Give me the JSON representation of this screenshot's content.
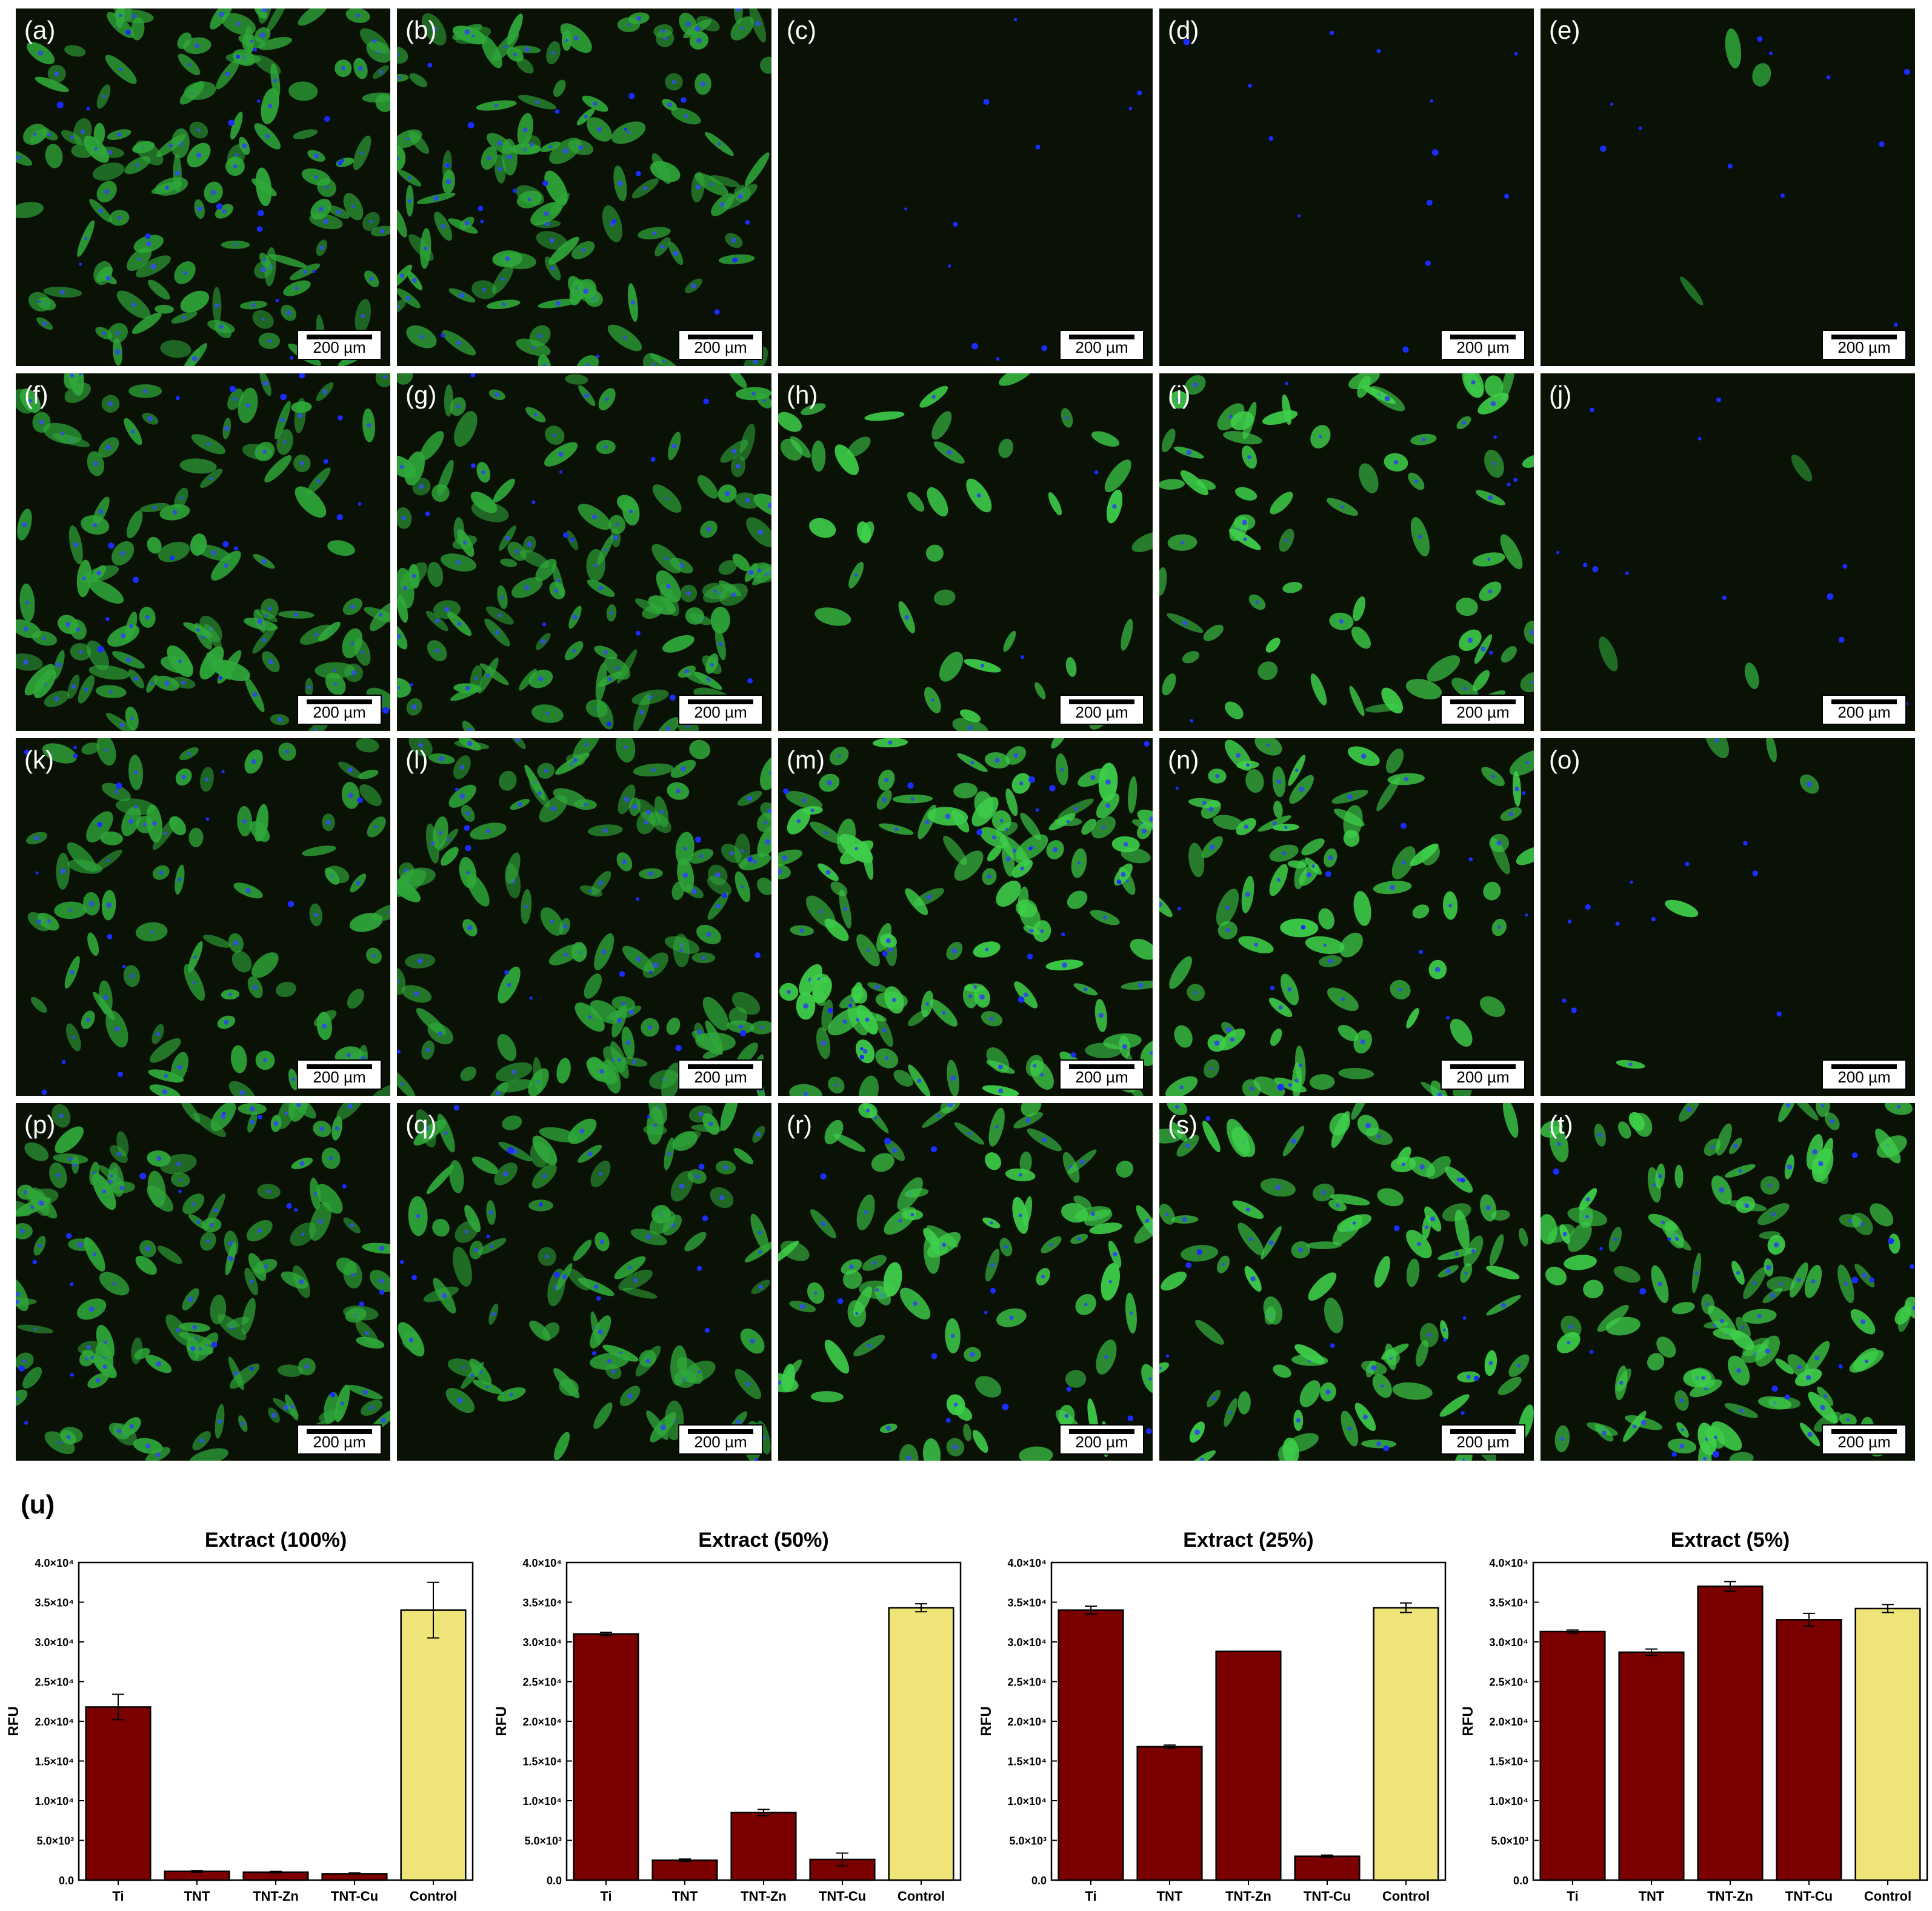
{
  "panels": [
    {
      "label": "(a)",
      "scale": "200 µm",
      "fill": 0.85,
      "color": "#2fa83a",
      "nuclei": 0.6
    },
    {
      "label": "(b)",
      "scale": "200 µm",
      "fill": 0.75,
      "color": "#2fa83a",
      "nuclei": 0.6
    },
    {
      "label": "(c)",
      "scale": "200 µm",
      "fill": 0.0,
      "color": "#2fa83a",
      "nuclei": 0.02
    },
    {
      "label": "(d)",
      "scale": "200 µm",
      "fill": 0.0,
      "color": "#2fa83a",
      "nuclei": 0.1
    },
    {
      "label": "(e)",
      "scale": "200 µm",
      "fill": 0.02,
      "color": "#2fa83a",
      "nuclei": 0.08
    },
    {
      "label": "(f)",
      "scale": "200 µm",
      "fill": 0.7,
      "color": "#2fa83a",
      "nuclei": 0.6
    },
    {
      "label": "(g)",
      "scale": "200 µm",
      "fill": 0.8,
      "color": "#2fa83a",
      "nuclei": 0.5
    },
    {
      "label": "(h)",
      "scale": "200 µm",
      "fill": 0.25,
      "color": "#3ecf4a",
      "nuclei": 0.1
    },
    {
      "label": "(i)",
      "scale": "200 µm",
      "fill": 0.45,
      "color": "#3ecf4a",
      "nuclei": 0.2
    },
    {
      "label": "(j)",
      "scale": "200 µm",
      "fill": 0.02,
      "color": "#2fa83a",
      "nuclei": 0.08
    },
    {
      "label": "(k)",
      "scale": "200 µm",
      "fill": 0.55,
      "color": "#2fa83a",
      "nuclei": 0.5
    },
    {
      "label": "(l)",
      "scale": "200 µm",
      "fill": 0.8,
      "color": "#2fa83a",
      "nuclei": 0.5
    },
    {
      "label": "(m)",
      "scale": "200 µm",
      "fill": 0.85,
      "color": "#3ecf4a",
      "nuclei": 0.6
    },
    {
      "label": "(n)",
      "scale": "200 µm",
      "fill": 0.55,
      "color": "#3ecf4a",
      "nuclei": 0.4
    },
    {
      "label": "(o)",
      "scale": "200 µm",
      "fill": 0.03,
      "color": "#3ecf4a",
      "nuclei": 0.06
    },
    {
      "label": "(p)",
      "scale": "200 µm",
      "fill": 0.8,
      "color": "#2fa83a",
      "nuclei": 0.6
    },
    {
      "label": "(q)",
      "scale": "200 µm",
      "fill": 0.6,
      "color": "#2fa83a",
      "nuclei": 0.5
    },
    {
      "label": "(r)",
      "scale": "200 µm",
      "fill": 0.55,
      "color": "#3ecf4a",
      "nuclei": 0.4
    },
    {
      "label": "(s)",
      "scale": "200 µm",
      "fill": 0.6,
      "color": "#3ecf4a",
      "nuclei": 0.4
    },
    {
      "label": "(t)",
      "scale": "200 µm",
      "fill": 0.75,
      "color": "#3ecf4a",
      "nuclei": 0.5
    }
  ],
  "section_label": "(u)",
  "chart_data": [
    {
      "type": "bar",
      "title": "Extract (100%)",
      "ylabel": "RFU",
      "categories": [
        "Ti",
        "TNT",
        "TNT-Zn",
        "TNT-Cu",
        "Control"
      ],
      "values": [
        21800,
        1100,
        1000,
        800,
        34000
      ],
      "errors": [
        1600,
        100,
        100,
        100,
        3500
      ],
      "colors": [
        "#7b0000",
        "#7b0000",
        "#7b0000",
        "#7b0000",
        "#eee477"
      ],
      "ylim": [
        0,
        40000
      ],
      "yticks": [
        {
          "v": 0,
          "t": "0.0"
        },
        {
          "v": 5000,
          "t": "5.0×10³"
        },
        {
          "v": 10000,
          "t": "1.0×10⁴"
        },
        {
          "v": 15000,
          "t": "1.5×10⁴"
        },
        {
          "v": 20000,
          "t": "2.0×10⁴"
        },
        {
          "v": 25000,
          "t": "2.5×10⁴"
        },
        {
          "v": 30000,
          "t": "3.0×10⁴"
        },
        {
          "v": 35000,
          "t": "3.5×10⁴"
        },
        {
          "v": 40000,
          "t": "4.0×10⁴"
        }
      ]
    },
    {
      "type": "bar",
      "title": "Extract (50%)",
      "ylabel": "RFU",
      "categories": [
        "Ti",
        "TNT",
        "TNT-Zn",
        "TNT-Cu",
        "Control"
      ],
      "values": [
        31000,
        2500,
        8500,
        2600,
        34300
      ],
      "errors": [
        200,
        150,
        400,
        800,
        500
      ],
      "colors": [
        "#7b0000",
        "#7b0000",
        "#7b0000",
        "#7b0000",
        "#eee477"
      ],
      "ylim": [
        0,
        40000
      ],
      "yticks": [
        {
          "v": 0,
          "t": "0.0"
        },
        {
          "v": 5000,
          "t": "5.0×10³"
        },
        {
          "v": 10000,
          "t": "1.0×10⁴"
        },
        {
          "v": 15000,
          "t": "1.5×10⁴"
        },
        {
          "v": 20000,
          "t": "2.0×10⁴"
        },
        {
          "v": 25000,
          "t": "2.5×10⁴"
        },
        {
          "v": 30000,
          "t": "3.0×10⁴"
        },
        {
          "v": 35000,
          "t": "3.5×10⁴"
        },
        {
          "v": 40000,
          "t": "4.0×10⁴"
        }
      ]
    },
    {
      "type": "bar",
      "title": "Extract (25%)",
      "ylabel": "RFU",
      "categories": [
        "Ti",
        "TNT",
        "TNT-Zn",
        "TNT-Cu",
        "Control"
      ],
      "values": [
        34000,
        16800,
        28800,
        3000,
        34300
      ],
      "errors": [
        500,
        200,
        0,
        150,
        600
      ],
      "colors": [
        "#7b0000",
        "#7b0000",
        "#7b0000",
        "#7b0000",
        "#eee477"
      ],
      "ylim": [
        0,
        40000
      ],
      "yticks": [
        {
          "v": 0,
          "t": "0.0"
        },
        {
          "v": 5000,
          "t": "5.0×10³"
        },
        {
          "v": 10000,
          "t": "1.0×10⁴"
        },
        {
          "v": 15000,
          "t": "1.5×10⁴"
        },
        {
          "v": 20000,
          "t": "2.0×10⁴"
        },
        {
          "v": 25000,
          "t": "2.5×10⁴"
        },
        {
          "v": 30000,
          "t": "3.0×10⁴"
        },
        {
          "v": 35000,
          "t": "3.5×10⁴"
        },
        {
          "v": 40000,
          "t": "4.0×10⁴"
        }
      ]
    },
    {
      "type": "bar",
      "title": "Extract (5%)",
      "ylabel": "RFU",
      "categories": [
        "Ti",
        "TNT",
        "TNT-Zn",
        "TNT-Cu",
        "Control"
      ],
      "values": [
        31300,
        28700,
        37000,
        32800,
        34200
      ],
      "errors": [
        200,
        400,
        600,
        800,
        500
      ],
      "colors": [
        "#7b0000",
        "#7b0000",
        "#7b0000",
        "#7b0000",
        "#eee477"
      ],
      "ylim": [
        0,
        40000
      ],
      "yticks": [
        {
          "v": 0,
          "t": "0.0"
        },
        {
          "v": 5000,
          "t": "5.0×10³"
        },
        {
          "v": 10000,
          "t": "1.0×10⁴"
        },
        {
          "v": 15000,
          "t": "1.5×10⁴"
        },
        {
          "v": 20000,
          "t": "2.0×10⁴"
        },
        {
          "v": 25000,
          "t": "2.5×10⁴"
        },
        {
          "v": 30000,
          "t": "3.0×10⁴"
        },
        {
          "v": 35000,
          "t": "3.5×10⁴"
        },
        {
          "v": 40000,
          "t": "4.0×10⁴"
        }
      ]
    }
  ]
}
